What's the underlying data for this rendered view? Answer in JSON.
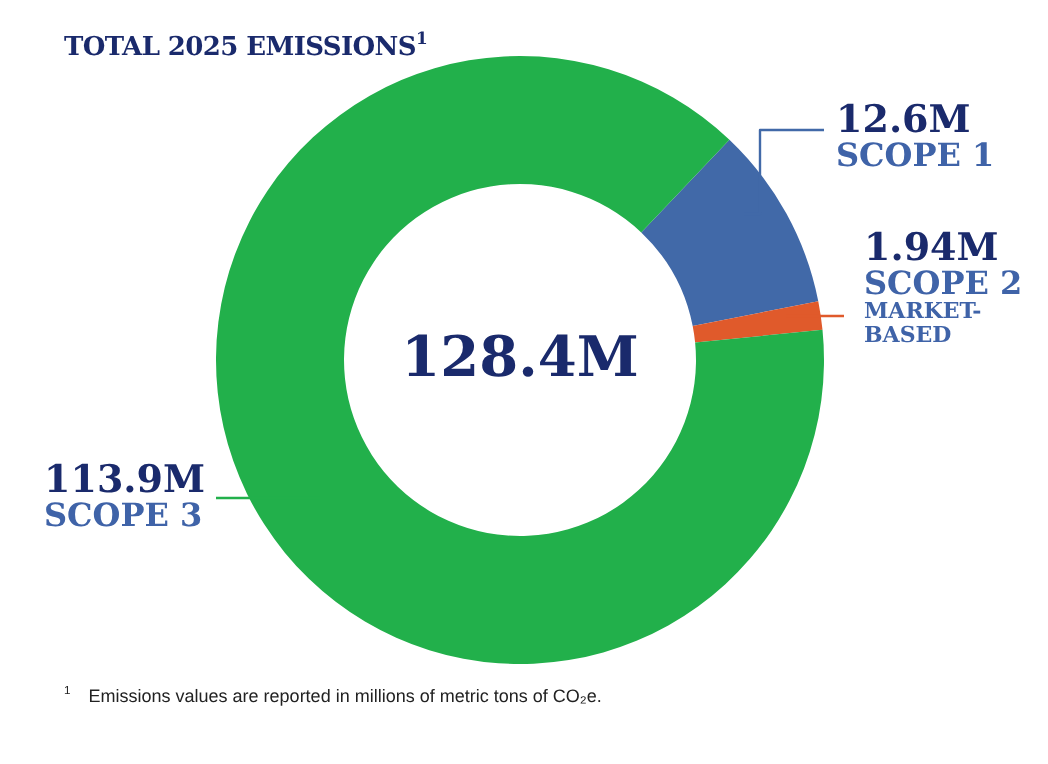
{
  "chart_data": {
    "type": "donut",
    "title": "TOTAL 2025 EMISSIONS$^{1}$",
    "categories": [
      "SCOPE 1",
      "SCOPE 2\nMARKET-\nBASED",
      "SCOPE 3"
    ],
    "values": [
      12.6,
      1.94,
      113.9
    ],
    "value_labels": [
      "12.6M",
      "1.94M",
      "113.9M"
    ],
    "colors": [
      "#4169a8",
      "#e05a2b",
      "#22b04b"
    ],
    "annotations": [
      "128.4M",
      "$^{1}$ Emissions values are reported in millions of metric tons of CO₂e."
    ]
  }
}
